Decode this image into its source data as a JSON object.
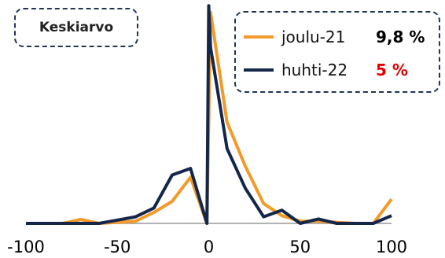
{
  "title": "Keskiarvo",
  "legend": [
    {
      "name": "joulu-21",
      "value": "9,8 %",
      "value_color": "#000000",
      "line_color": "#f29b2b"
    },
    {
      "name": "huhti-22",
      "value": "5 %",
      "value_color": "#e00000",
      "line_color": "#14274a"
    }
  ],
  "chart_data": {
    "type": "line",
    "title": "Keskiarvo",
    "xlim": [
      -100,
      100
    ],
    "ylim": [
      0,
      0.98
    ],
    "x_ticks": [
      "-100",
      "-50",
      "0",
      "50",
      "100"
    ],
    "x_tick_values": [
      -100,
      -50,
      0,
      50,
      100
    ],
    "grid": false,
    "legend_position": "top-right",
    "series": [
      {
        "name": "joulu-21",
        "color": "#f29b2b",
        "points": [
          [
            -100,
            0
          ],
          [
            -90,
            0
          ],
          [
            -80,
            0
          ],
          [
            -70,
            0.018
          ],
          [
            -60,
            0
          ],
          [
            -50,
            0.005
          ],
          [
            -40,
            0.01
          ],
          [
            -30,
            0.05
          ],
          [
            -20,
            0.1
          ],
          [
            -10,
            0.21
          ],
          [
            -1,
            0
          ],
          [
            1,
            0.96
          ],
          [
            10,
            0.46
          ],
          [
            20,
            0.26
          ],
          [
            30,
            0.09
          ],
          [
            40,
            0.035
          ],
          [
            50,
            0.01
          ],
          [
            60,
            0.01
          ],
          [
            70,
            0.005
          ],
          [
            80,
            0
          ],
          [
            90,
            0
          ],
          [
            100,
            0.11
          ]
        ]
      },
      {
        "name": "huhti-22",
        "color": "#14274a",
        "points": [
          [
            -100,
            0
          ],
          [
            -90,
            0
          ],
          [
            -80,
            0
          ],
          [
            -70,
            0
          ],
          [
            -60,
            0
          ],
          [
            -50,
            0.015
          ],
          [
            -40,
            0.03
          ],
          [
            -30,
            0.07
          ],
          [
            -20,
            0.22
          ],
          [
            -10,
            0.25
          ],
          [
            -1,
            0
          ],
          [
            0,
            0.99
          ],
          [
            1,
            0.8
          ],
          [
            10,
            0.34
          ],
          [
            20,
            0.16
          ],
          [
            30,
            0.03
          ],
          [
            40,
            0.06
          ],
          [
            50,
            0
          ],
          [
            60,
            0.02
          ],
          [
            70,
            0
          ],
          [
            80,
            0
          ],
          [
            90,
            0
          ],
          [
            100,
            0.035
          ]
        ]
      }
    ]
  }
}
